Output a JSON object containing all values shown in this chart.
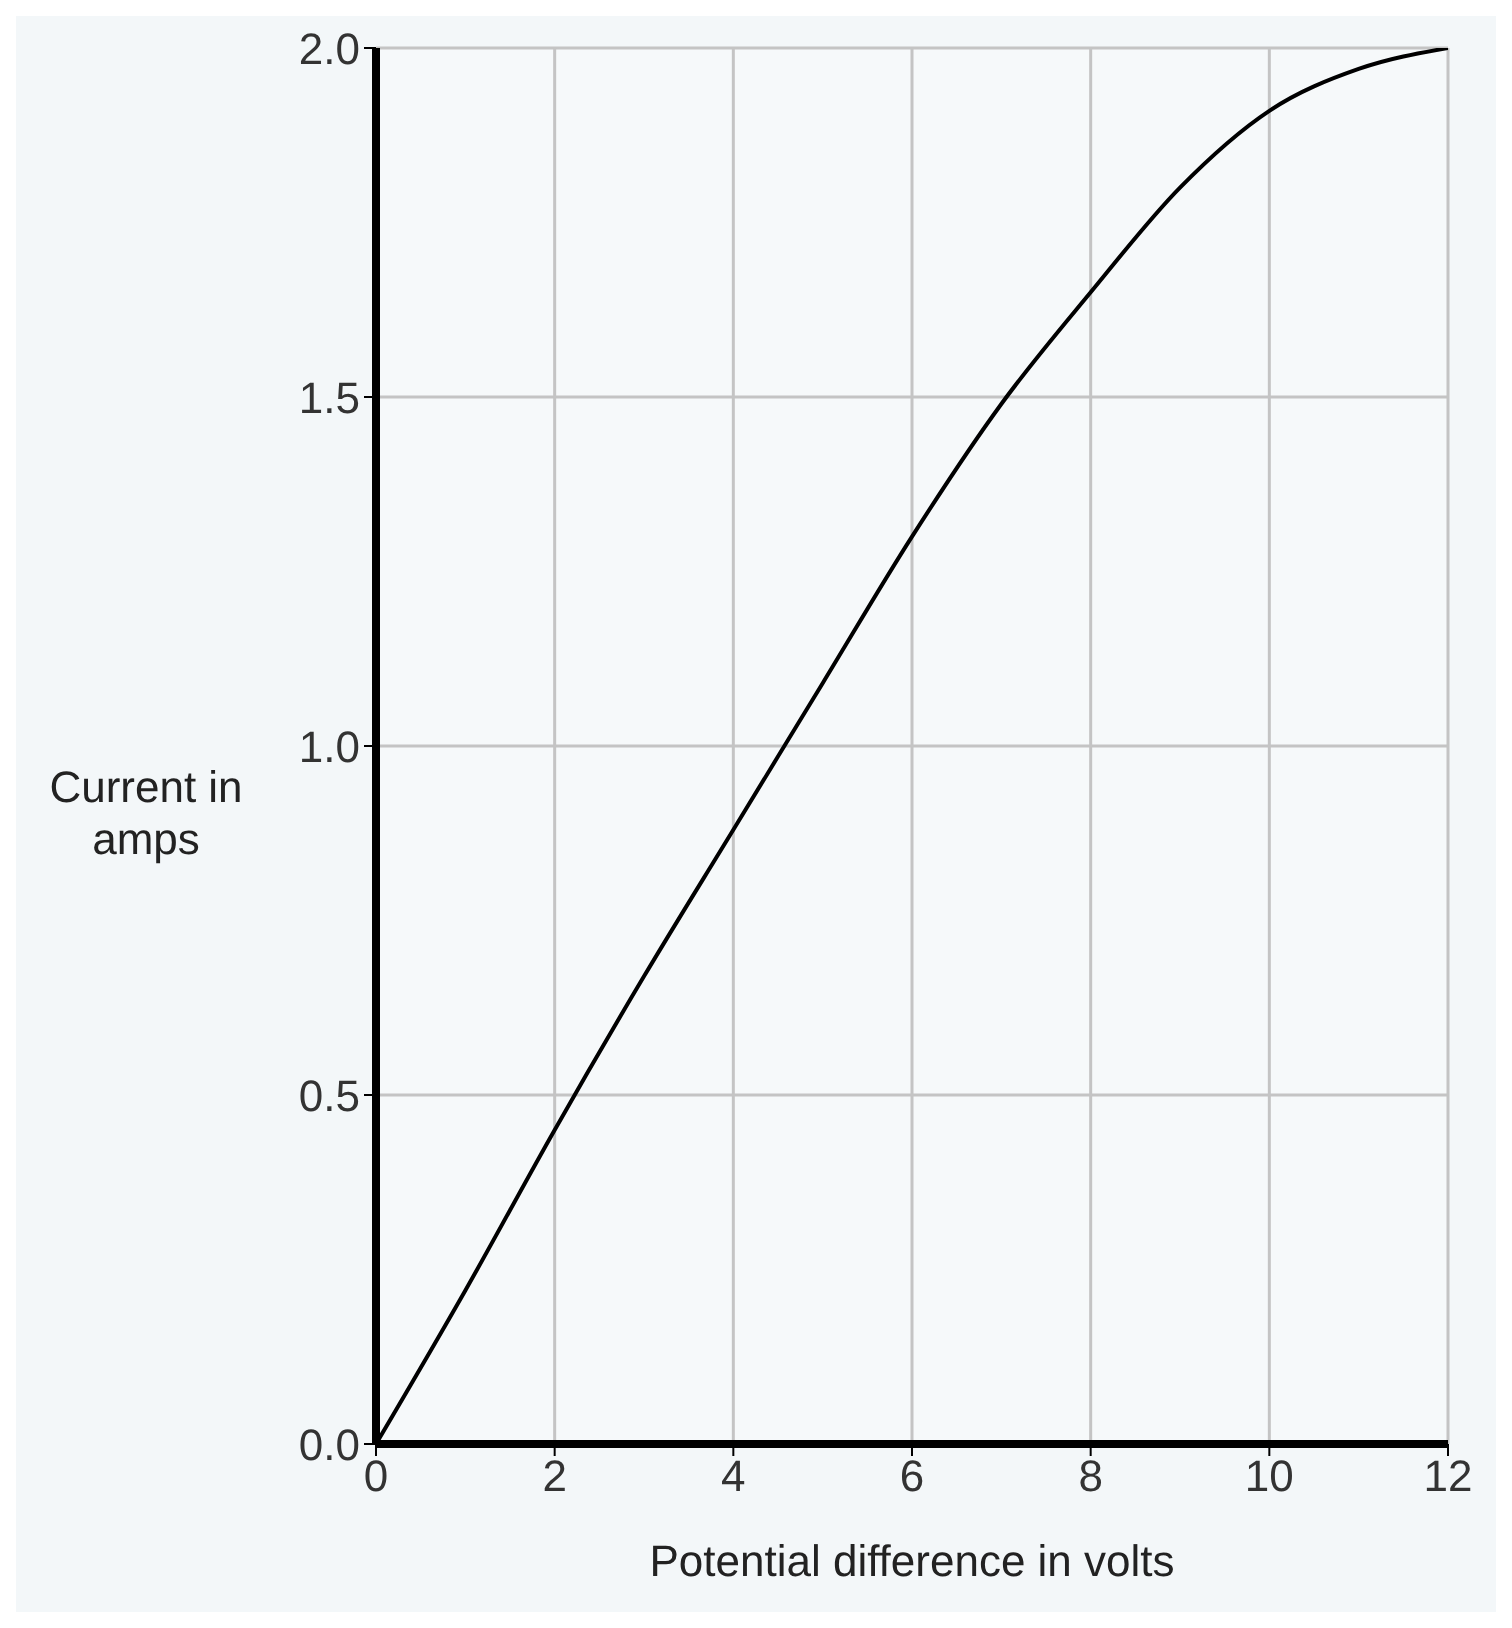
{
  "chart_data": {
    "type": "line",
    "xlabel": "Potential difference in volts",
    "ylabel": "Current in amps",
    "x": [
      0,
      1,
      2,
      3,
      4,
      5,
      6,
      7,
      8,
      9,
      10,
      11,
      12
    ],
    "series": [
      {
        "color": "#000000",
        "values": [
          0,
          0.22,
          0.45,
          0.67,
          0.88,
          1.09,
          1.3,
          1.49,
          1.65,
          1.8,
          1.91,
          1.97,
          2.0
        ]
      }
    ],
    "xlim": [
      0,
      12
    ],
    "xticks": [
      0,
      2,
      4,
      6,
      8,
      10,
      12
    ],
    "ylim": [
      0,
      2
    ],
    "yticks": [
      {
        "value": 0,
        "label": "0.0"
      },
      {
        "value": 0.5,
        "label": "0.5"
      },
      {
        "value": 1,
        "label": "1.0"
      },
      {
        "value": 1.5,
        "label": "1.5"
      },
      {
        "value": 2,
        "label": "2.0"
      }
    ],
    "grid": true,
    "marker": "none",
    "line_style": "solid",
    "legend": false
  }
}
